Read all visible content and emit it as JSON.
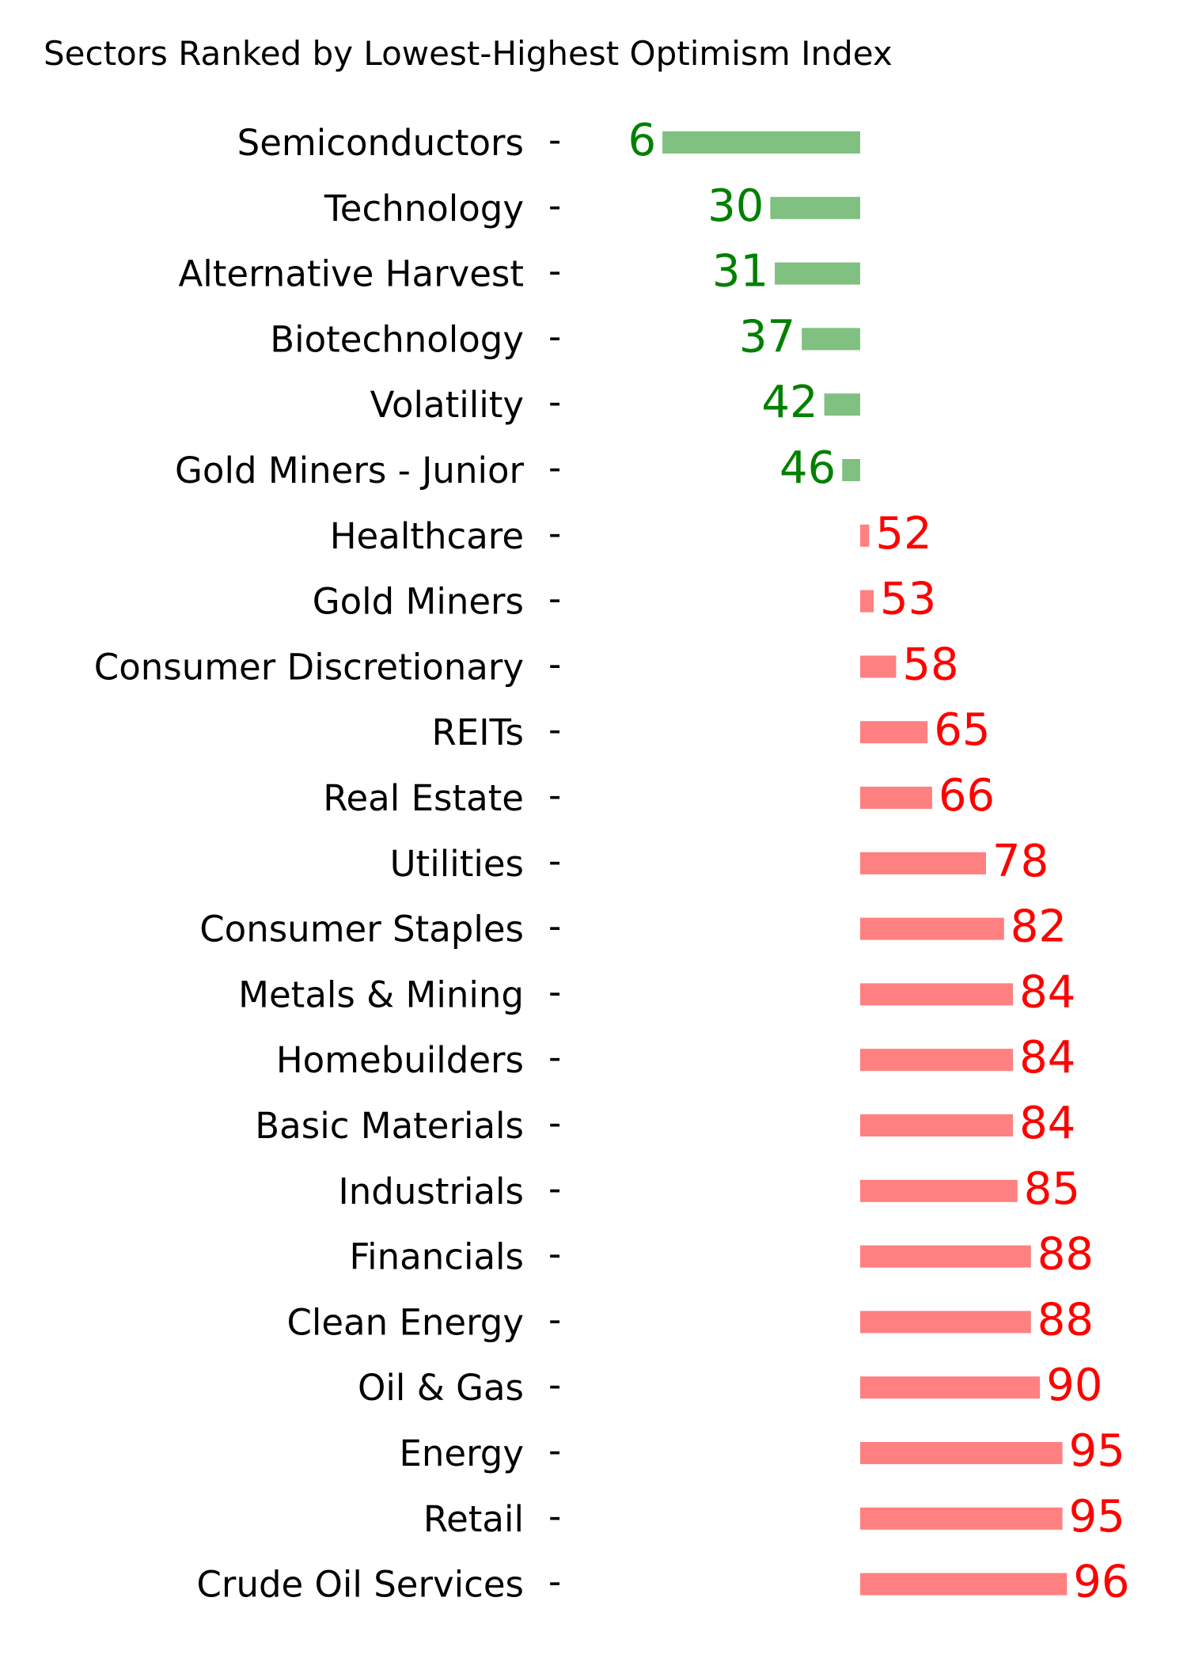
{
  "chart_data": {
    "type": "bar",
    "orientation": "horizontal",
    "title": "Sectors Ranked by Lowest-Highest Optimism Index",
    "xlabel": "",
    "ylabel": "",
    "baseline": 50,
    "xlim": [
      0,
      100
    ],
    "grid": false,
    "legend": "none",
    "colors": {
      "below_baseline": "#80c080",
      "above_baseline": "#ff8080",
      "below_label": "#008000",
      "above_label": "#ff0000",
      "text": "#000000"
    },
    "categories": [
      "Semiconductors",
      "Technology",
      "Alternative Harvest",
      "Biotechnology",
      "Volatility",
      "Gold Miners - Junior",
      "Healthcare",
      "Gold Miners",
      "Consumer Discretionary",
      "REITs",
      "Real Estate",
      "Utilities",
      "Consumer Staples",
      "Metals & Mining",
      "Homebuilders",
      "Basic Materials",
      "Industrials",
      "Financials",
      "Clean Energy",
      "Oil & Gas",
      "Energy",
      "Retail",
      "Crude Oil Services"
    ],
    "values": [
      6,
      30,
      31,
      37,
      42,
      46,
      52,
      53,
      58,
      65,
      66,
      78,
      82,
      84,
      84,
      84,
      85,
      88,
      88,
      90,
      95,
      95,
      96
    ],
    "value_labels": [
      "6",
      "30",
      "31",
      "37",
      "42",
      "46",
      "52",
      "53",
      "58",
      "65",
      "66",
      "78",
      "82",
      "84",
      "84",
      "84",
      "85",
      "88",
      "88",
      "90",
      "95",
      "95",
      "96"
    ]
  }
}
